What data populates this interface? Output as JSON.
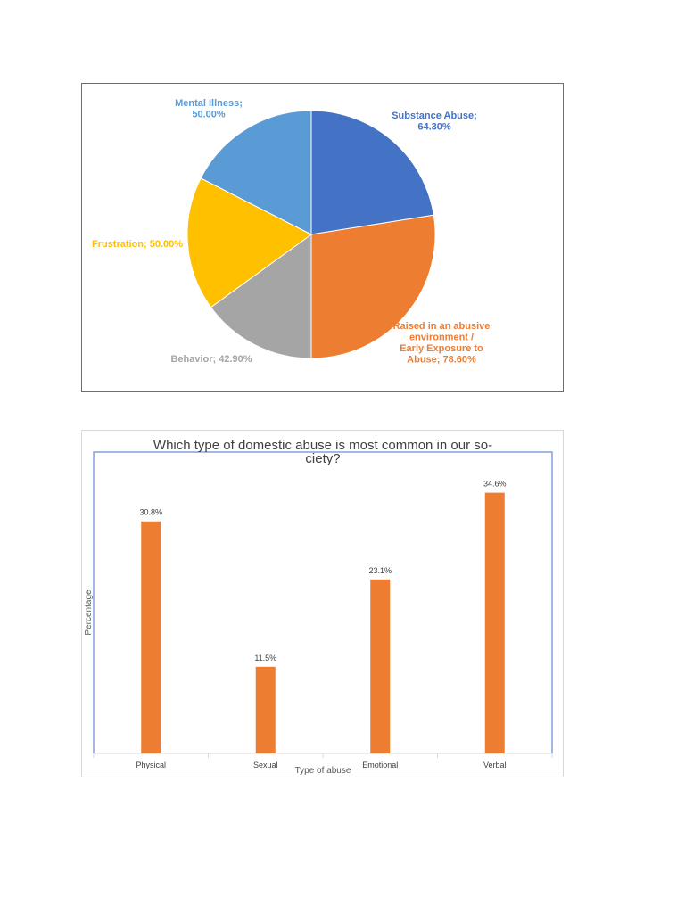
{
  "chart_data": [
    {
      "type": "pie",
      "slices": [
        {
          "name": "Substance Abuse",
          "value": 64.3,
          "label_lines": [
            "Substance Abuse;",
            "64.30%"
          ],
          "color": "#4472c4"
        },
        {
          "name": "Raised in an abusive environment / Early Exposure to Abuse",
          "value": 78.6,
          "label_lines": [
            "Raised in an abusive",
            "environment /",
            "Early Exposure to",
            "Abuse; 78.60%"
          ],
          "color": "#ed7d31"
        },
        {
          "name": "Behavior",
          "value": 42.9,
          "label_lines": [
            "Behavior; 42.90%"
          ],
          "color": "#a5a5a5"
        },
        {
          "name": "Frustration",
          "value": 50.0,
          "label_lines": [
            "Frustration; 50.00%"
          ],
          "color": "#ffc000"
        },
        {
          "name": "Mental Illness",
          "value": 50.0,
          "label_lines": [
            "Mental Illness;",
            "50.00%"
          ],
          "color": "#5b9bd5"
        }
      ]
    },
    {
      "type": "bar",
      "title_lines": [
        "Which type of domestic abuse is most common in our so-",
        "ciety?"
      ],
      "categories": [
        "Physical",
        "Sexual",
        "Emotional",
        "Verbal"
      ],
      "values": [
        30.8,
        11.5,
        23.1,
        34.6
      ],
      "value_labels": [
        "30.8%",
        "11.5%",
        "23.1%",
        "34.6%"
      ],
      "xlabel": "Type of abuse",
      "ylabel": "Percentage",
      "ylim": [
        0,
        40
      ],
      "bar_color": "#ed7d31"
    }
  ]
}
